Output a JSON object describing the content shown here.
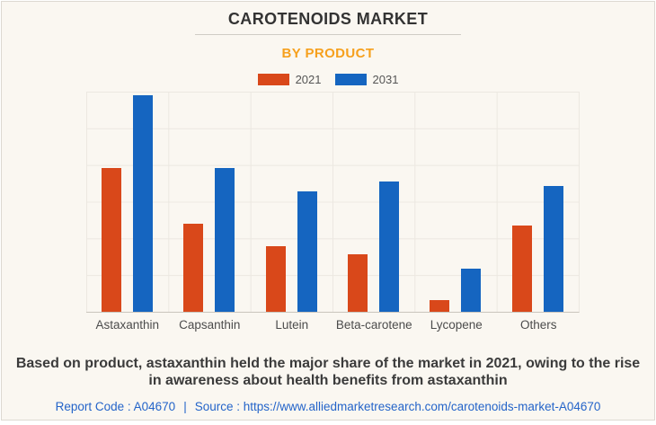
{
  "page": {
    "title": "CAROTENOIDS MARKET",
    "subtitle": "BY PRODUCT"
  },
  "colors": {
    "background": "#FAF7F1",
    "subtitle_accent": "#F6A01D",
    "series_2021": "#D9481A",
    "series_2031": "#1565C0",
    "link_blue": "#2464C9"
  },
  "legend": {
    "items": [
      {
        "label": "2021",
        "color": "#D9481A"
      },
      {
        "label": "2031",
        "color": "#1565C0"
      }
    ]
  },
  "chart_data": {
    "type": "bar",
    "title": "CAROTENOIDS MARKET",
    "subtitle": "BY PRODUCT",
    "categories": [
      "Astaxanthin",
      "Capsanthin",
      "Lutein",
      "Beta-carotene",
      "Lycopene",
      "Others"
    ],
    "series": [
      {
        "name": "2021",
        "color": "#D9481A",
        "values": [
          65.5,
          40,
          30,
          26,
          5.5,
          39
        ]
      },
      {
        "name": "2031",
        "color": "#1565C0",
        "values": [
          98.5,
          65.5,
          54.5,
          59,
          19.5,
          57
        ]
      }
    ],
    "xlabel": "",
    "ylabel": "",
    "ylim": [
      0,
      100
    ],
    "grid": true,
    "value_axis_labels_visible": false,
    "legend_position": "top"
  },
  "footer": {
    "note_lines": [
      "Based on product, astaxanthin held the major share of the market in 2021, owing to the rise",
      "in awareness about health benefits from astaxanthin"
    ],
    "report_code": "Report Code : A04670",
    "separator": "|",
    "source_label": "Source :",
    "source_url": "https://www.alliedmarketresearch.com/carotenoids-market-A04670"
  }
}
